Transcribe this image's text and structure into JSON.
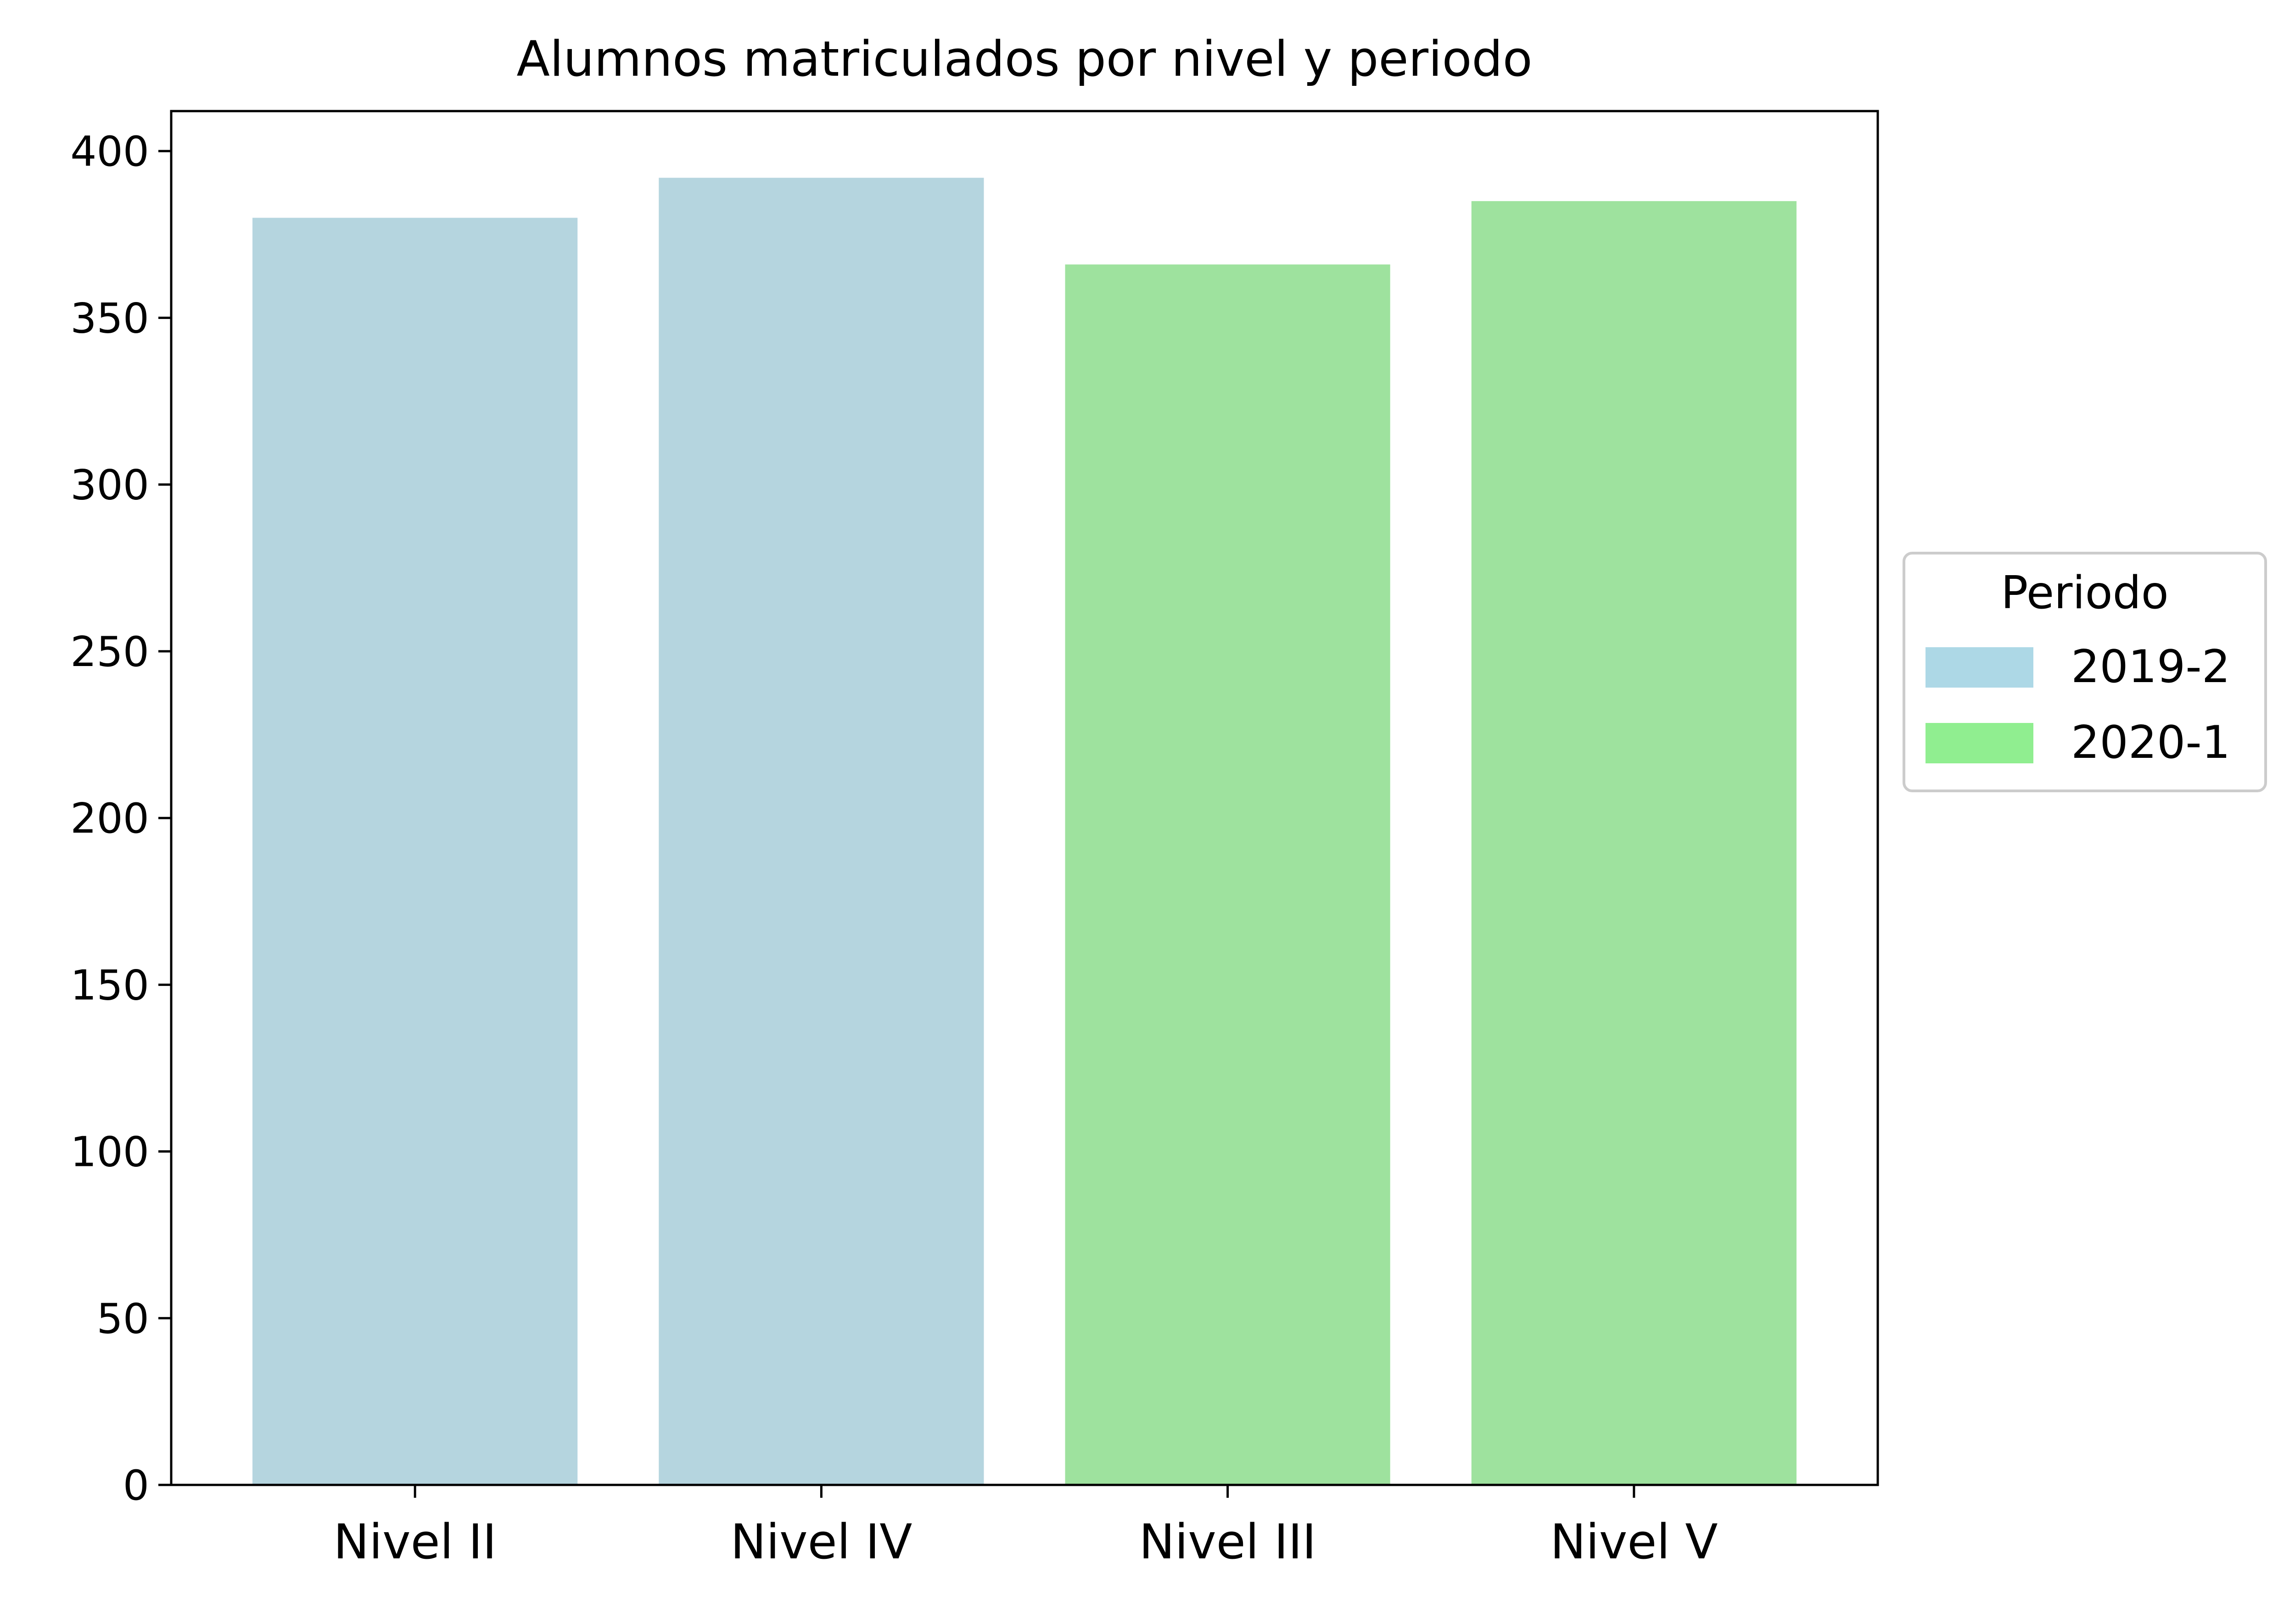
{
  "chart_data": {
    "type": "bar",
    "title": "Alumnos matriculados por nivel y periodo",
    "xlabel": "",
    "ylabel": "",
    "categories": [
      "Nivel II",
      "Nivel IV",
      "Nivel III",
      "Nivel V"
    ],
    "values": [
      380,
      392,
      366,
      385
    ],
    "bar_period": [
      "2019-2",
      "2019-2",
      "2020-1",
      "2020-1"
    ],
    "ylim": [
      0,
      412
    ],
    "yticks": [
      0,
      50,
      100,
      150,
      200,
      250,
      300,
      350,
      400
    ],
    "grid": false,
    "legend": {
      "title": "Periodo",
      "placement": "right",
      "entries": [
        {
          "label": "2019-2",
          "color": "#ADD8E6"
        },
        {
          "label": "2020-1",
          "color": "#90EE90"
        }
      ]
    },
    "bar_colors": {
      "2019-2": "#B5D5DF",
      "2020-1": "#9EE29E"
    }
  }
}
